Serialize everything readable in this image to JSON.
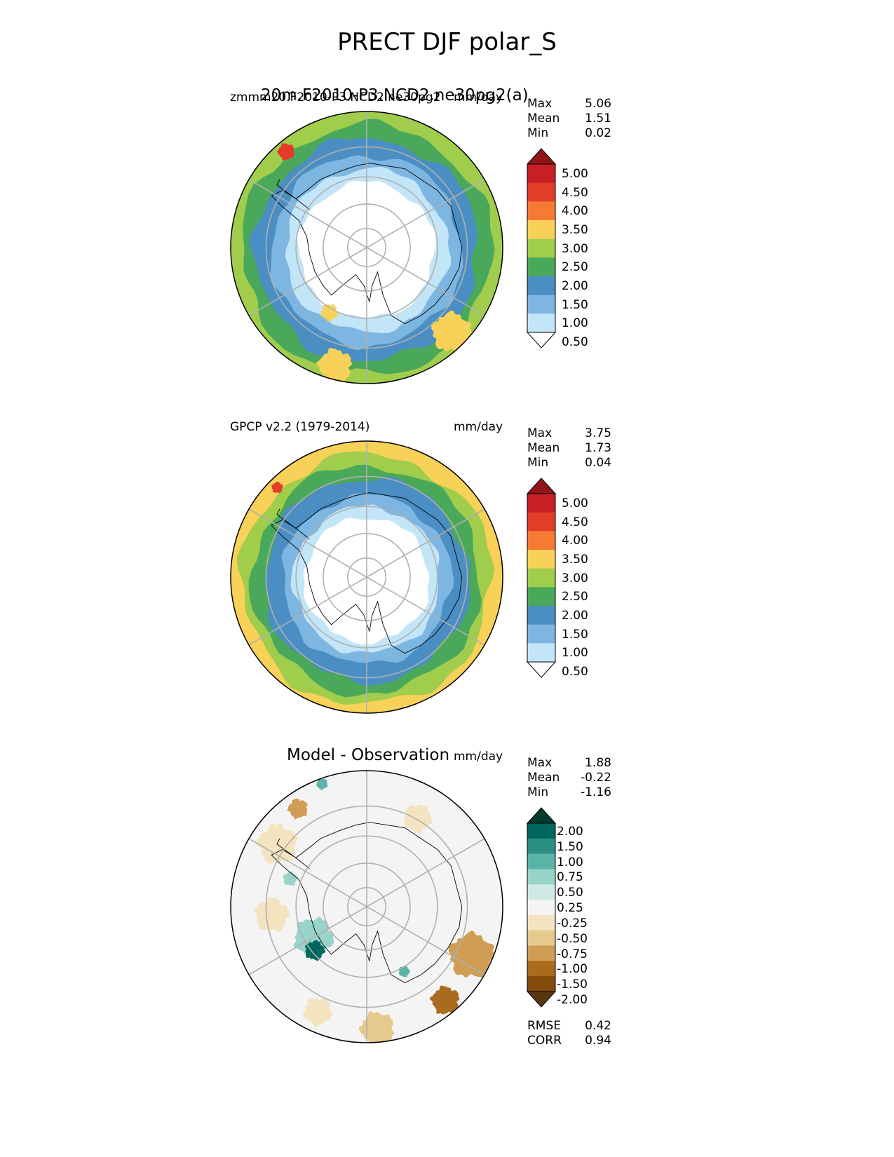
{
  "figure": {
    "title": "PRECT DJF polar_S"
  },
  "chart_data": [
    {
      "type": "heatmap",
      "projection": "south polar stereographic",
      "title_left": "zmmm20.F2010-P3.NCD2.ne30pg2",
      "title_overlap": "20m.F2010-P3.NCD2.ne30pg2(a)",
      "units": "mm/day",
      "stats": {
        "max_label": "Max",
        "max": "5.06",
        "mean_label": "Mean",
        "mean": "1.51",
        "min_label": "Min",
        "min": "0.02"
      },
      "colorbar": {
        "ticks": [
          "5.00",
          "4.50",
          "4.00",
          "3.50",
          "3.00",
          "2.50",
          "2.00",
          "1.50",
          "1.00",
          "0.50"
        ],
        "colors": [
          "#8f1519",
          "#c71f26",
          "#e33d2a",
          "#f57a33",
          "#f7d158",
          "#a1cd4d",
          "#4aa85a",
          "#4a8ec3",
          "#7db6e1",
          "#c3e5f8",
          "#ffffff"
        ]
      },
      "rings": [
        {
          "r": 1.0,
          "color": "#a1cd4d"
        },
        {
          "r": 0.92,
          "color": "#4aa85a"
        },
        {
          "r": 0.82,
          "color": "#4a8ec3"
        },
        {
          "r": 0.7,
          "color": "#7db6e1"
        },
        {
          "r": 0.6,
          "color": "#c3e5f8"
        },
        {
          "r": 0.5,
          "color": "#ffffff"
        }
      ],
      "blobs": [
        {
          "a": 45,
          "d": 0.88,
          "s": 0.14,
          "color": "#f7d158"
        },
        {
          "a": 105,
          "d": 0.9,
          "s": 0.12,
          "color": "#f7d158"
        },
        {
          "a": 230,
          "d": 0.92,
          "s": 0.06,
          "color": "#e33d2a"
        },
        {
          "a": 120,
          "d": 0.55,
          "s": 0.06,
          "color": "#f7d158"
        }
      ]
    },
    {
      "type": "heatmap",
      "projection": "south polar stereographic",
      "title_left": "GPCP v2.2 (1979-2014)",
      "units": "mm/day",
      "stats": {
        "max_label": "Max",
        "max": "3.75",
        "mean_label": "Mean",
        "mean": "1.73",
        "min_label": "Min",
        "min": "0.04"
      },
      "colorbar": {
        "ticks": [
          "5.00",
          "4.50",
          "4.00",
          "3.50",
          "3.00",
          "2.50",
          "2.00",
          "1.50",
          "1.00",
          "0.50"
        ],
        "colors": [
          "#8f1519",
          "#c71f26",
          "#e33d2a",
          "#f57a33",
          "#f7d158",
          "#a1cd4d",
          "#4aa85a",
          "#4a8ec3",
          "#7db6e1",
          "#c3e5f8",
          "#ffffff"
        ]
      },
      "rings": [
        {
          "r": 1.0,
          "color": "#f7d158"
        },
        {
          "r": 0.92,
          "color": "#a1cd4d"
        },
        {
          "r": 0.84,
          "color": "#4aa85a"
        },
        {
          "r": 0.75,
          "color": "#4a8ec3"
        },
        {
          "r": 0.62,
          "color": "#7db6e1"
        },
        {
          "r": 0.54,
          "color": "#c3e5f8"
        },
        {
          "r": 0.46,
          "color": "#ffffff"
        }
      ],
      "blobs": [
        {
          "a": 225,
          "d": 0.93,
          "s": 0.04,
          "color": "#e33d2a"
        }
      ]
    },
    {
      "type": "heatmap",
      "projection": "south polar stereographic",
      "title_center": "Model - Observation",
      "units": "mm/day",
      "stats": {
        "max_label": "Max",
        "max": "1.88",
        "mean_label": "Mean",
        "mean": "-0.22",
        "min_label": "Min",
        "min": "-1.16"
      },
      "colorbar": {
        "ticks": [
          "2.00",
          "1.50",
          "1.00",
          "0.75",
          "0.50",
          "0.25",
          "-0.25",
          "-0.50",
          "-0.75",
          "-1.00",
          "-1.50",
          "-2.00"
        ],
        "colors": [
          "#013b2f",
          "#01665e",
          "#2b8e83",
          "#5ab4a8",
          "#98d4c9",
          "#cfeae4",
          "#f4f4f4",
          "#f4e3bf",
          "#e6c98d",
          "#cf9d54",
          "#aa6b1e",
          "#834b0b",
          "#5a350e"
        ]
      },
      "footer_stats": {
        "rmse_label": "RMSE",
        "rmse": "0.42",
        "corr_label": "CORR",
        "corr": "0.94"
      },
      "rings": [
        {
          "r": 1.0,
          "color": "#f4f4f4"
        }
      ],
      "blobs": [
        {
          "a": 25,
          "d": 0.85,
          "s": 0.16,
          "color": "#cf9d54"
        },
        {
          "a": 50,
          "d": 0.9,
          "s": 0.1,
          "color": "#aa6b1e"
        },
        {
          "a": 85,
          "d": 0.9,
          "s": 0.12,
          "color": "#e6c98d"
        },
        {
          "a": 115,
          "d": 0.85,
          "s": 0.1,
          "color": "#f4e3bf"
        },
        {
          "a": 150,
          "d": 0.45,
          "s": 0.14,
          "color": "#98d4c9"
        },
        {
          "a": 140,
          "d": 0.5,
          "s": 0.07,
          "color": "#01665e"
        },
        {
          "a": 175,
          "d": 0.7,
          "s": 0.12,
          "color": "#f4e3bf"
        },
        {
          "a": 215,
          "d": 0.8,
          "s": 0.14,
          "color": "#f4e3bf"
        },
        {
          "a": 235,
          "d": 0.88,
          "s": 0.07,
          "color": "#cf9d54"
        },
        {
          "a": 250,
          "d": 0.96,
          "s": 0.04,
          "color": "#5ab4a8"
        },
        {
          "a": 300,
          "d": 0.75,
          "s": 0.1,
          "color": "#f4e3bf"
        },
        {
          "a": 60,
          "d": 0.55,
          "s": 0.04,
          "color": "#5ab4a8"
        },
        {
          "a": 200,
          "d": 0.6,
          "s": 0.05,
          "color": "#98d4c9"
        }
      ]
    }
  ]
}
